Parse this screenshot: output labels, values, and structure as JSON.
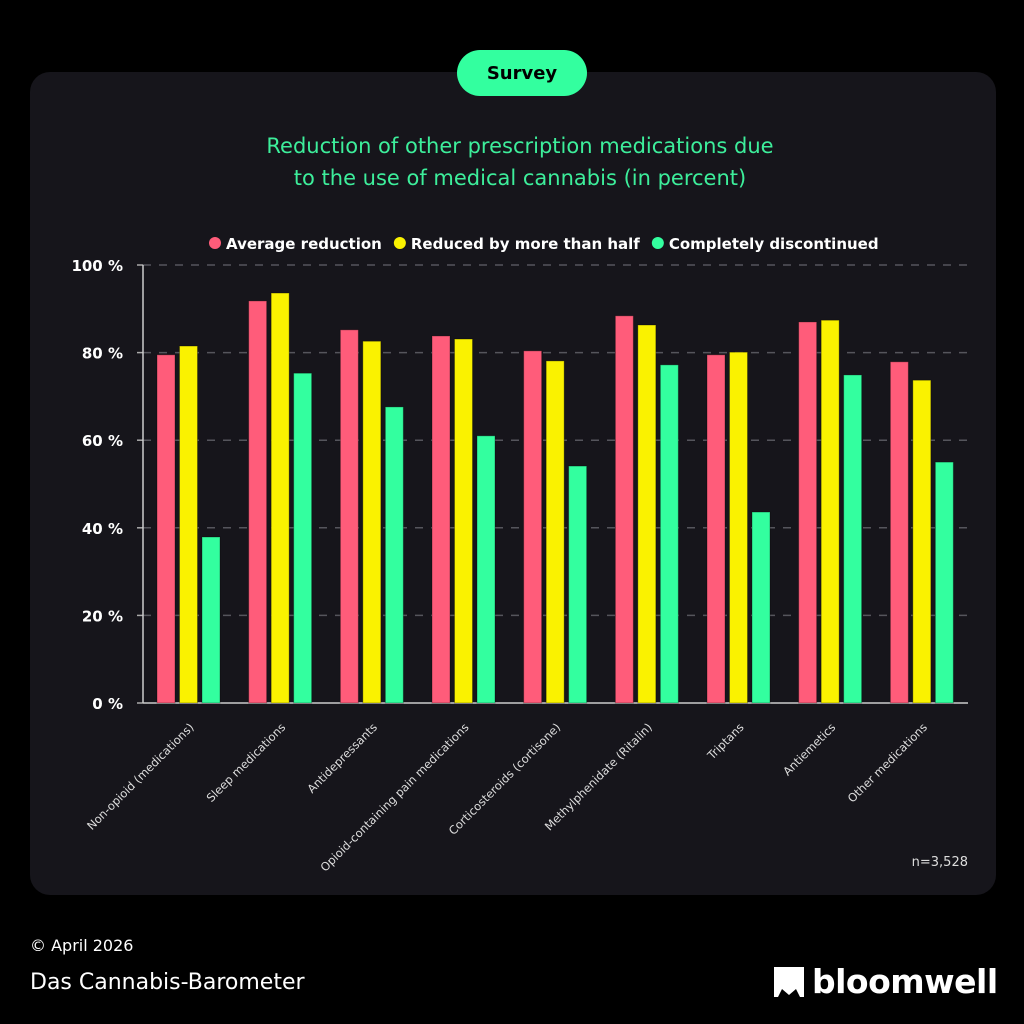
{
  "badge": "Survey",
  "title_lines": [
    "Reduction of other prescription medications due",
    "to the use of medical cannabis (in percent)"
  ],
  "sample": "n=3,528",
  "footer": {
    "copyright": "© April 2026",
    "source": "Das Cannabis-Barometer",
    "logo": "bloomwell"
  },
  "chart_data": {
    "type": "bar",
    "title": "Reduction of other prescription medications due to the use of medical cannabis (in percent)",
    "categories": [
      "Non-opioid (medications)",
      "Sleep medications",
      "Antidepressants",
      "Opioid-containing pain medications",
      "Corticosteroids (cortisone)",
      "Methylphenidate (Ritalin)",
      "Triptans",
      "Antiemetics",
      "Other medications"
    ],
    "series": [
      {
        "name": "Average reduction",
        "color": "#ff5c7a",
        "values": [
          79.5,
          91.8,
          85.2,
          83.8,
          80.4,
          88.4,
          79.5,
          87.0,
          77.9
        ]
      },
      {
        "name": "Reduced by more than half",
        "color": "#faf200",
        "values": [
          81.5,
          93.6,
          82.6,
          83.1,
          78.1,
          86.3,
          80.1,
          87.4,
          73.7
        ]
      },
      {
        "name": "Completely discontinued",
        "color": "#33ff9f",
        "values": [
          37.9,
          75.3,
          67.6,
          61.0,
          54.1,
          77.2,
          43.6,
          74.9,
          55.0
        ]
      }
    ],
    "yticks": [
      "0 %",
      "20 %",
      "40 %",
      "60 %",
      "80 %",
      "100 %"
    ],
    "ylim": [
      0,
      100
    ],
    "grid": true,
    "legend": "top"
  }
}
